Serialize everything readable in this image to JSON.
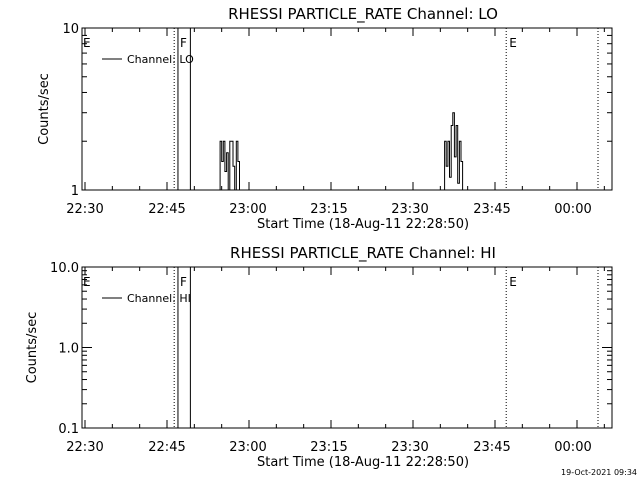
{
  "charts": [
    {
      "title": "RHESSI PARTICLE_RATE Channel: LO",
      "xlabel": "Start Time (18-Aug-11 22:28:50)",
      "ylabel": "Counts/sec",
      "x_ticks": [
        "22:30",
        "22:45",
        "23:00",
        "23:15",
        "23:30",
        "23:45",
        "00:00"
      ],
      "y_ticks": [
        "1",
        "10"
      ],
      "legend_label": "Channel: LO",
      "event_labels": [
        "E",
        "F",
        "E"
      ]
    },
    {
      "title": "RHESSI PARTICLE_RATE Channel: HI",
      "xlabel": "Start Time (18-Aug-11 22:28:50)",
      "ylabel": "Counts/sec",
      "x_ticks": [
        "22:30",
        "22:45",
        "23:00",
        "23:15",
        "23:30",
        "23:45",
        "00:00"
      ],
      "y_ticks": [
        "0.1",
        "1.0",
        "10.0"
      ],
      "legend_label": "Channel: HI",
      "event_labels": [
        "E",
        "F",
        "E"
      ]
    }
  ],
  "footer": {
    "timestamp": "19-Oct-2021 09:34"
  },
  "chart_data": [
    {
      "type": "line",
      "title": "RHESSI PARTICLE_RATE Channel: LO",
      "xlabel": "Start Time (18-Aug-11 22:28:50)",
      "ylabel": "Counts/sec",
      "x_unit": "minutes after 22:28:50",
      "xlim": [
        0,
        100
      ],
      "ylim": [
        1,
        10
      ],
      "y_scale": "log",
      "legend_position": "top-left",
      "vertical_lines": [
        {
          "x": 17.5,
          "style": "dotted",
          "label": ""
        },
        {
          "x": 18.2,
          "style": "solid",
          "label": "F"
        },
        {
          "x": 20.5,
          "style": "solid",
          "label": ""
        },
        {
          "x": 78.8,
          "style": "dotted",
          "label": "E"
        },
        {
          "x": 95.8,
          "style": "dotted",
          "label": ""
        }
      ],
      "left_edge_label": "E",
      "series": [
        {
          "name": "Channel: LO",
          "x": [
            26.0,
            26.3,
            26.6,
            26.9,
            27.2,
            27.5,
            27.8,
            28.1,
            28.4,
            28.7,
            29.0,
            29.3,
            67.5,
            67.8,
            68.1,
            68.4,
            68.7,
            69.0,
            69.3,
            69.6,
            69.9,
            70.2,
            70.5,
            70.8
          ],
          "y": [
            2,
            1.5,
            2,
            1.3,
            1.7,
            1,
            2,
            2,
            1.4,
            1,
            2,
            1.5,
            2,
            1.4,
            2,
            1.2,
            2.5,
            3,
            1.6,
            2.5,
            1.1,
            2,
            1.5,
            1
          ]
        }
      ]
    },
    {
      "type": "line",
      "title": "RHESSI PARTICLE_RATE Channel: HI",
      "xlabel": "Start Time (18-Aug-11 22:28:50)",
      "ylabel": "Counts/sec",
      "x_unit": "minutes after 22:28:50",
      "xlim": [
        0,
        100
      ],
      "ylim": [
        0.1,
        10
      ],
      "y_scale": "log",
      "legend_position": "top-left",
      "vertical_lines": [
        {
          "x": 17.5,
          "style": "dotted",
          "label": ""
        },
        {
          "x": 18.2,
          "style": "solid",
          "label": "F"
        },
        {
          "x": 20.5,
          "style": "solid",
          "label": ""
        },
        {
          "x": 78.8,
          "style": "dotted",
          "label": "E"
        },
        {
          "x": 95.8,
          "style": "dotted",
          "label": ""
        }
      ],
      "left_edge_label": "E",
      "series": [
        {
          "name": "Channel: HI",
          "x": [],
          "y": []
        }
      ]
    }
  ]
}
